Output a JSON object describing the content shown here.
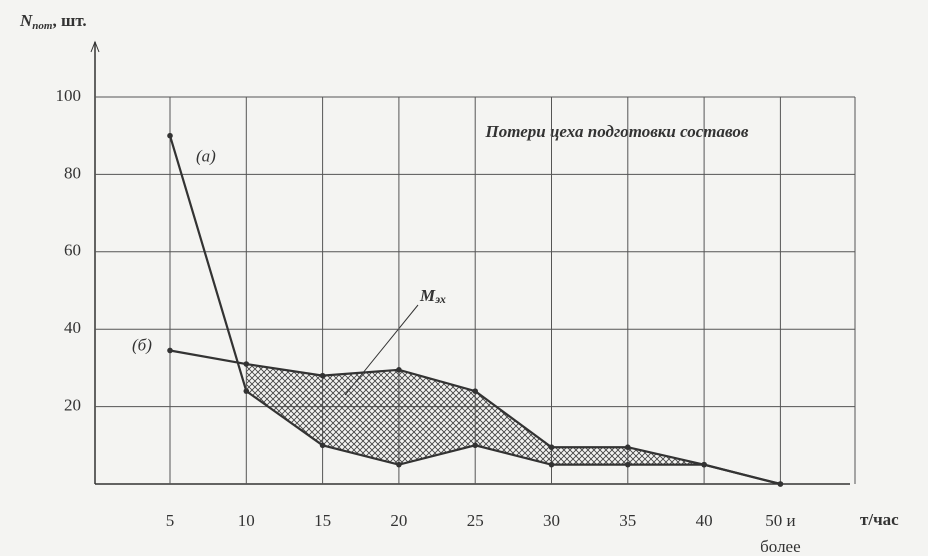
{
  "chart_data": {
    "type": "line",
    "title": "Потери цеха подготовки составов",
    "y_label": "N",
    "y_label_subscript": "пот",
    "y_label_suffix": ", шт.",
    "x_label": "т/час",
    "annotation": "М",
    "annotation_subscript": "эх",
    "categories": [
      "5",
      "10",
      "15",
      "20",
      "25",
      "30",
      "35",
      "40",
      "50 и более"
    ],
    "series": [
      {
        "name": "(а)",
        "color": "#333333",
        "values": [
          90,
          24,
          10,
          5,
          10,
          5,
          5,
          5,
          0
        ]
      },
      {
        "name": "(б)",
        "color": "#333333",
        "values": [
          34.5,
          31,
          28,
          29.5,
          24,
          9.5,
          9.5,
          5,
          0
        ]
      }
    ],
    "ylim": [
      0,
      100
    ],
    "yticks": [
      20,
      40,
      60,
      80,
      100
    ],
    "grid": true,
    "shade_between_series": true
  }
}
